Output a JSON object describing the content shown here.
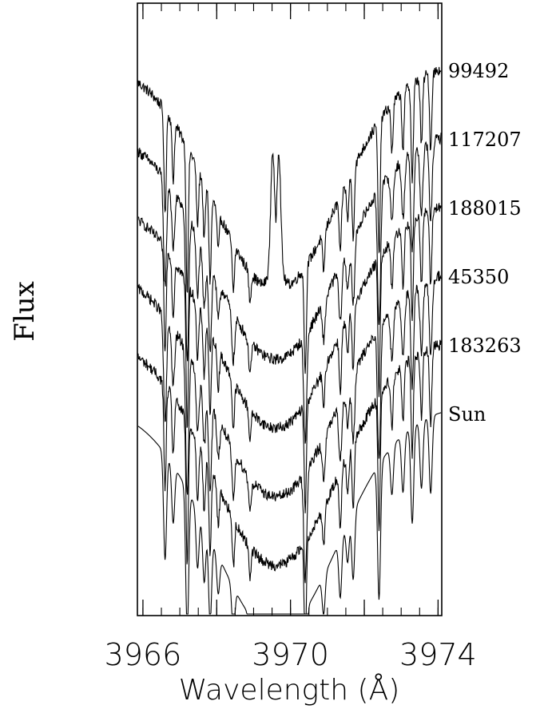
{
  "chart_data": {
    "type": "line",
    "xlabel": "Wavelength (Å)",
    "ylabel": "Flux",
    "xlim": [
      3965.85,
      3974.1
    ],
    "x_ticks": [
      3966,
      3970,
      3974
    ],
    "x_tick_labels": [
      "3966",
      "3970",
      "3974"
    ],
    "grid": false,
    "core": {
      "center": 3969.6,
      "sigma": 1.7
    },
    "emission": {
      "center": 3969.6,
      "width": 0.14,
      "separation": 0.18
    },
    "lines": [
      {
        "x": 3966.6,
        "depth": 0.55
      },
      {
        "x": 3966.82,
        "depth": 0.3
      },
      {
        "x": 3967.2,
        "depth": 0.75
      },
      {
        "x": 3967.48,
        "depth": 0.3
      },
      {
        "x": 3967.66,
        "depth": 0.3
      },
      {
        "x": 3967.82,
        "depth": 0.45
      },
      {
        "x": 3968.04,
        "depth": 0.2
      },
      {
        "x": 3968.45,
        "depth": 0.25
      },
      {
        "x": 3968.9,
        "depth": 0.15
      },
      {
        "x": 3970.4,
        "depth": 0.55
      },
      {
        "x": 3970.9,
        "depth": 0.2
      },
      {
        "x": 3971.35,
        "depth": 0.3
      },
      {
        "x": 3971.55,
        "depth": 0.2
      },
      {
        "x": 3971.7,
        "depth": 0.35
      },
      {
        "x": 3972.4,
        "depth": 0.7
      },
      {
        "x": 3972.75,
        "depth": 0.25
      },
      {
        "x": 3973.05,
        "depth": 0.3
      },
      {
        "x": 3973.3,
        "depth": 0.5
      },
      {
        "x": 3973.55,
        "depth": 0.35
      },
      {
        "x": 3973.8,
        "depth": 0.4
      }
    ],
    "series": [
      {
        "name": "99492",
        "emission": true,
        "noise": 0.012
      },
      {
        "name": "117207",
        "emission": false,
        "noise": 0.012
      },
      {
        "name": "188015",
        "emission": false,
        "noise": 0.012
      },
      {
        "name": "45350",
        "emission": false,
        "noise": 0.012
      },
      {
        "name": "183263",
        "emission": false,
        "noise": 0.012
      },
      {
        "name": "Sun",
        "emission": false,
        "noise": 0.0
      }
    ]
  }
}
